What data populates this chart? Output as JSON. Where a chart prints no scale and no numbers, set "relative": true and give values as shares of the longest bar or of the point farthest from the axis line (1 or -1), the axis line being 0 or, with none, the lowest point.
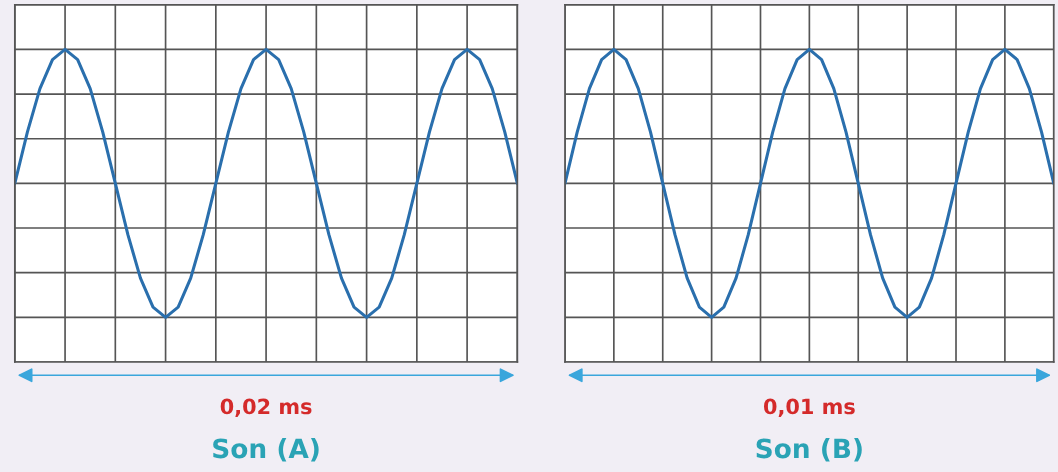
{
  "chart_data": [
    {
      "type": "line",
      "relative": true,
      "grid": true,
      "categories": [
        null,
        null,
        null,
        null,
        null,
        null,
        null,
        null,
        null,
        null,
        null,
        null,
        null,
        null,
        null,
        null,
        null,
        null,
        null,
        null,
        null,
        null,
        null,
        null,
        null,
        null,
        null,
        null,
        null,
        null,
        null,
        null,
        null,
        null,
        null,
        null,
        null,
        null,
        null,
        null,
        null
      ],
      "series": [
        {
          "color": "#2a6fad",
          "values": [
            0,
            0.383,
            0.707,
            0.924,
            1,
            0.924,
            0.707,
            0.383,
            0,
            -0.383,
            -0.707,
            -0.924,
            -1,
            -0.924,
            -0.707,
            -0.383,
            0,
            0.383,
            0.707,
            0.924,
            1,
            0.924,
            0.707,
            0.383,
            0,
            -0.383,
            -0.707,
            -0.924,
            -1,
            -0.924,
            -0.707,
            -0.383,
            0,
            0.383,
            0.707,
            0.924,
            1,
            0.924,
            0.707,
            0.383,
            0
          ]
        }
      ],
      "annotations": [
        "0,02 ms",
        "Son (A)"
      ]
    },
    {
      "type": "line",
      "relative": true,
      "grid": true,
      "categories": [
        null,
        null,
        null,
        null,
        null,
        null,
        null,
        null,
        null,
        null,
        null,
        null,
        null,
        null,
        null,
        null,
        null,
        null,
        null,
        null,
        null,
        null,
        null,
        null,
        null,
        null,
        null,
        null,
        null,
        null,
        null,
        null,
        null,
        null,
        null,
        null,
        null,
        null,
        null,
        null,
        null
      ],
      "series": [
        {
          "color": "#2a6fad",
          "values": [
            0,
            0.383,
            0.707,
            0.924,
            1,
            0.924,
            0.707,
            0.383,
            0,
            -0.383,
            -0.707,
            -0.924,
            -1,
            -0.924,
            -0.707,
            -0.383,
            0,
            0.383,
            0.707,
            0.924,
            1,
            0.924,
            0.707,
            0.383,
            0,
            -0.383,
            -0.707,
            -0.924,
            -1,
            -0.924,
            -0.707,
            -0.383,
            0,
            0.383,
            0.707,
            0.924,
            1,
            0.924,
            0.707,
            0.383,
            0
          ]
        }
      ],
      "annotations": [
        "0,01 ms",
        "Son (B)"
      ]
    }
  ]
}
